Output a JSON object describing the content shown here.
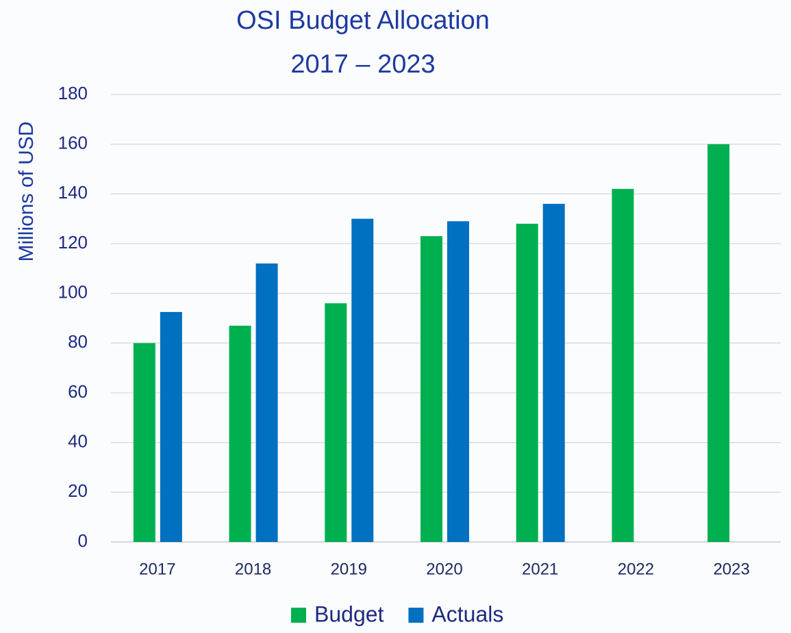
{
  "chart_data": {
    "type": "bar",
    "title": "OSI Budget Allocation",
    "subtitle": "2017 – 2023",
    "y_label": "Millions of USD",
    "categories": [
      "2017",
      "2018",
      "2019",
      "2020",
      "2021",
      "2022",
      "2023"
    ],
    "series": [
      {
        "name": "Budget",
        "color": "#00b050",
        "values": [
          80,
          87,
          96,
          123,
          128,
          142,
          160
        ]
      },
      {
        "name": "Actuals",
        "color": "#0070c0",
        "values": [
          92.5,
          112,
          130,
          129,
          136,
          null,
          null
        ]
      }
    ],
    "ylim": [
      0,
      180
    ],
    "yticks": [
      0,
      20,
      40,
      60,
      80,
      100,
      120,
      140,
      160,
      180
    ],
    "grid": true,
    "legend": "bottom"
  }
}
